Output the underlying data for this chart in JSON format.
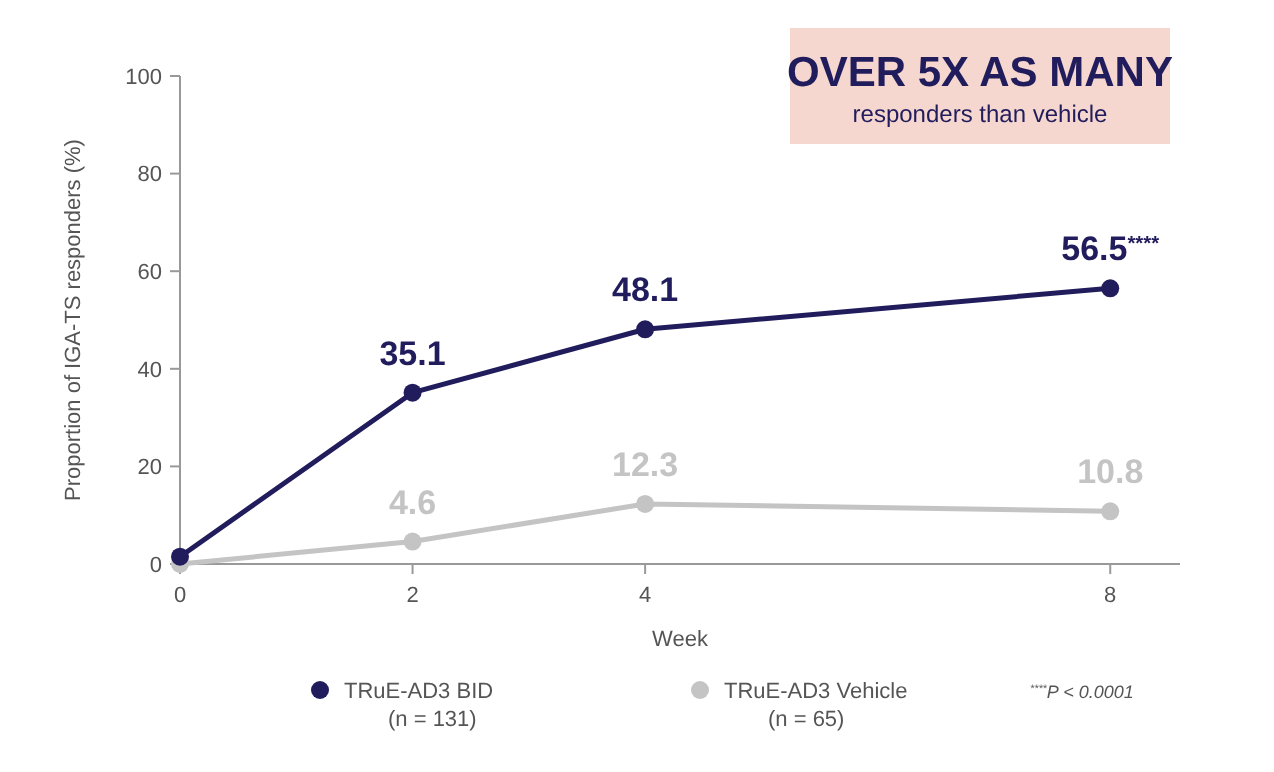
{
  "chart_data": {
    "type": "line",
    "title": "OVER 5X AS MANY",
    "subtitle": "responders than vehicle",
    "xlabel": "Week",
    "ylabel": "Proportion of IGA-TS responders (%)",
    "x": [
      0,
      2,
      4,
      8
    ],
    "xlim": [
      0,
      8.6
    ],
    "xticks": [
      0,
      2,
      4,
      8
    ],
    "ylim": [
      0,
      100
    ],
    "yticks": [
      0,
      20,
      40,
      60,
      80,
      100
    ],
    "grid": false,
    "legend": "bottom",
    "marker": "circle",
    "line_style": "solid",
    "series": [
      {
        "name": "TRuE-AD3 BID\n(n = 131)",
        "color": "#211c5c",
        "values": [
          1.5,
          35.1,
          48.1,
          56.5
        ],
        "value_labels": [
          null,
          "35.1",
          "48.1",
          "56.5$^{****}$"
        ]
      },
      {
        "name": "TRuE-AD3 Vehicle\n(n = 65)",
        "color": "#c4c4c4",
        "values": [
          0,
          4.6,
          12.3,
          10.8
        ],
        "value_labels": [
          null,
          "4.6",
          "12.3",
          "10.8"
        ]
      }
    ],
    "annotations": [
      "$^{****}$P < 0.0001"
    ]
  }
}
